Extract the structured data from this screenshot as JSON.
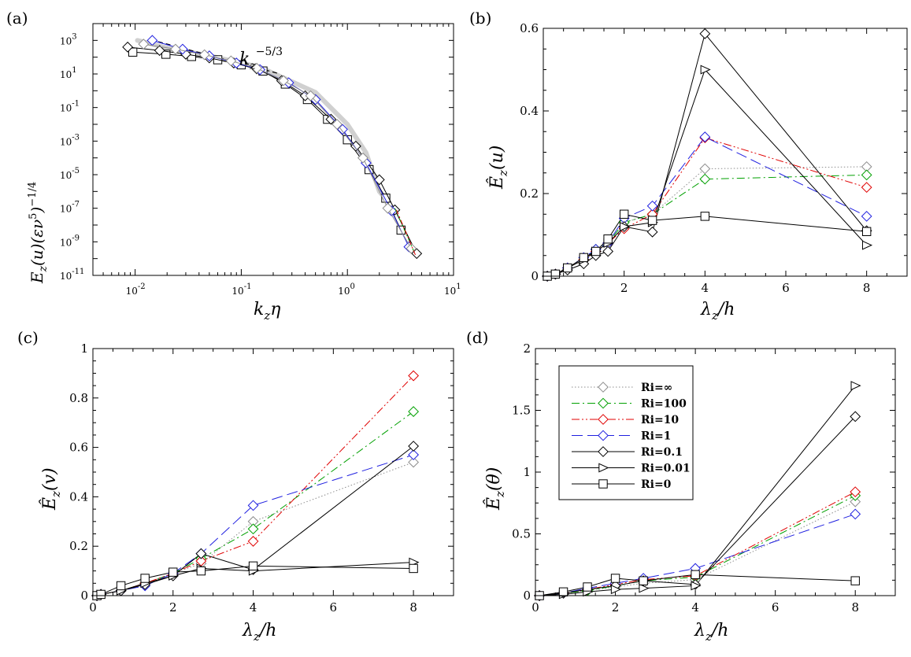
{
  "chart_data": [
    {
      "id": "a",
      "panel_label": "(a)",
      "type": "line",
      "xlabel": "k_z η",
      "ylabel": "E_z(u)(εν^5)^-1/4",
      "xscale": "log",
      "yscale": "log",
      "xlim": [
        0.004,
        10
      ],
      "ylim": [
        1e-11,
        10000
      ],
      "x_tick_labels": [
        {
          "base": "10",
          "exp": "-2",
          "value": 0.01
        },
        {
          "base": "10",
          "exp": "-1",
          "value": 0.1
        },
        {
          "base": "10",
          "exp": "0",
          "value": 1
        },
        {
          "base": "10",
          "exp": "1",
          "value": 10
        }
      ],
      "y_tick_labels": [
        {
          "base": "10",
          "exp": "3",
          "value": 1000
        },
        {
          "base": "10",
          "exp": "1",
          "value": 10
        },
        {
          "base": "10",
          "exp": "-1",
          "value": 0.1
        },
        {
          "base": "10",
          "exp": "-3",
          "value": 0.001
        },
        {
          "base": "10",
          "exp": "-5",
          "value": 1e-05
        },
        {
          "base": "10",
          "exp": "-7",
          "value": 1e-07
        },
        {
          "base": "10",
          "exp": "-9",
          "value": 1e-09
        },
        {
          "base": "10",
          "exp": "-11",
          "value": 1e-11
        }
      ],
      "annotation": "k_z^-5/3",
      "reference_slope": {
        "x": [
          0.014,
          0.22
        ],
        "y": [
          1100,
          11
        ],
        "style": "dashed"
      },
      "reference_band": {
        "x": [
          0.0105,
          0.02,
          0.05,
          0.15,
          0.5,
          1.0,
          1.5,
          2.0,
          2.2
        ],
        "y": [
          1000,
          350,
          120,
          25,
          0.8,
          0.01,
          0.0002,
          1e-06,
          5e-07
        ]
      },
      "series": [
        {
          "name": "Ri=0",
          "marker": "square",
          "x": [
            0.0095,
            0.0195,
            0.034,
            0.06,
            0.1,
            0.16,
            0.26,
            0.42,
            0.65,
            1.0,
            1.6,
            2.3,
            3.2
          ],
          "y": [
            200,
            150,
            110,
            70,
            35,
            15,
            2.5,
            0.3,
            0.02,
            0.0012,
            2e-05,
            4e-07,
            5e-09
          ]
        },
        {
          "name": "Ri=0.1",
          "marker": "diamond",
          "x": [
            0.0085,
            0.017,
            0.03,
            0.05,
            0.085,
            0.14,
            0.24,
            0.4,
            0.7,
            1.2,
            2.0,
            2.8,
            4.5
          ],
          "y": [
            400,
            250,
            150,
            90,
            45,
            20,
            4,
            0.5,
            0.02,
            0.0005,
            5e-06,
            8e-08,
            2e-10
          ]
        },
        {
          "name": "Ri=1",
          "marker": "diamond",
          "x": [
            0.0145,
            0.028,
            0.05,
            0.09,
            0.15,
            0.28,
            0.5,
            0.9,
            1.5,
            2.6,
            3.8
          ],
          "y": [
            1000,
            300,
            120,
            45,
            18,
            3,
            0.3,
            0.005,
            5e-05,
            7e-08,
            5e-10
          ]
        },
        {
          "name": "Ri=∞",
          "marker": "diamond",
          "x": [
            0.012,
            0.024,
            0.045,
            0.08,
            0.14,
            0.25,
            0.45,
            0.8,
            1.4,
            2.4,
            4.0
          ],
          "y": [
            600,
            300,
            140,
            60,
            22,
            4,
            0.5,
            0.01,
            0.0001,
            1e-07,
            4e-10
          ]
        }
      ]
    },
    {
      "id": "b",
      "panel_label": "(b)",
      "type": "line",
      "xlabel": "λ_z/h",
      "ylabel": "Ê_z(u)",
      "xlim": [
        0,
        9
      ],
      "ylim": [
        0,
        0.6
      ],
      "x_ticks": [
        2,
        4,
        6,
        8
      ],
      "x_tick_labels": [
        "2",
        "4",
        "6",
        "8"
      ],
      "y_ticks": [
        0,
        0.2,
        0.4,
        0.6
      ],
      "y_tick_labels": [
        "0",
        "0.2",
        "0.4",
        "0.6"
      ],
      "x": [
        0.1,
        0.3,
        0.6,
        1.0,
        1.3,
        1.6,
        2.0,
        2.7,
        4.0,
        8.0
      ],
      "series": [
        {
          "name": "Ri=∞",
          "marker": "diamond",
          "color": "#8c8c8c",
          "dash": "1.5,2.5",
          "values": [
            0.0,
            0.005,
            0.02,
            0.04,
            0.065,
            0.08,
            0.13,
            0.15,
            0.26,
            0.265
          ]
        },
        {
          "name": "Ri=100",
          "marker": "diamond",
          "color": "#00a000",
          "dash": "10,4,2,4",
          "values": [
            0.0,
            0.005,
            0.02,
            0.04,
            0.065,
            0.08,
            0.13,
            0.15,
            0.235,
            0.245
          ]
        },
        {
          "name": "Ri=10",
          "marker": "diamond",
          "color": "#e00000",
          "dash": "10,3,2,3,2,3",
          "values": [
            0.0,
            0.005,
            0.02,
            0.04,
            0.06,
            0.08,
            0.115,
            0.15,
            0.335,
            0.215
          ]
        },
        {
          "name": "Ri=1",
          "marker": "diamond",
          "color": "#2020e0",
          "dash": "14,6",
          "values": [
            0.0,
            0.005,
            0.02,
            0.045,
            0.065,
            0.08,
            0.14,
            0.17,
            0.337,
            0.145
          ]
        },
        {
          "name": "Ri=0.1",
          "marker": "diamond",
          "color": "#000000",
          "dash": "",
          "values": [
            0.0,
            0.005,
            0.015,
            0.03,
            0.05,
            0.06,
            0.12,
            0.107,
            0.587,
            0.11
          ]
        },
        {
          "name": "Ri=0.01",
          "marker": "triangle-right",
          "color": "#000000",
          "dash": "",
          "values": [
            0.0,
            0.005,
            0.02,
            0.04,
            0.06,
            0.08,
            0.12,
            0.13,
            0.5,
            0.075
          ]
        },
        {
          "name": "Ri=0",
          "marker": "square",
          "color": "#000000",
          "dash": "",
          "values": [
            0.0,
            0.005,
            0.02,
            0.045,
            0.06,
            0.09,
            0.15,
            0.135,
            0.145,
            0.108
          ]
        }
      ]
    },
    {
      "id": "c",
      "panel_label": "(c)",
      "type": "line",
      "xlabel": "λ_z/h",
      "ylabel": "Ê_z(v)",
      "xlim": [
        0,
        9
      ],
      "ylim": [
        0,
        1
      ],
      "x_ticks": [
        0,
        2,
        4,
        6,
        8
      ],
      "x_tick_labels": [
        "0",
        "2",
        "4",
        "6",
        "8"
      ],
      "y_ticks": [
        0,
        0.2,
        0.4,
        0.6,
        0.8,
        1
      ],
      "y_tick_labels": [
        "0",
        "0.2",
        "0.4",
        "0.6",
        "0.8",
        "1"
      ],
      "x": [
        0.1,
        0.2,
        0.7,
        1.3,
        2.0,
        2.7,
        4.0,
        8.0
      ],
      "series": [
        {
          "name": "Ri=∞",
          "marker": "diamond",
          "color": "#8c8c8c",
          "dash": "1.5,2.5",
          "values": [
            0.0,
            0.005,
            0.02,
            0.05,
            0.09,
            0.13,
            0.3,
            0.54
          ]
        },
        {
          "name": "Ri=100",
          "marker": "diamond",
          "color": "#00a000",
          "dash": "10,4,2,4",
          "values": [
            0.0,
            0.005,
            0.02,
            0.05,
            0.09,
            0.15,
            0.27,
            0.745
          ]
        },
        {
          "name": "Ri=10",
          "marker": "diamond",
          "color": "#e00000",
          "dash": "10,3,2,3,2,3",
          "values": [
            0.0,
            0.005,
            0.02,
            0.05,
            0.09,
            0.14,
            0.22,
            0.89
          ]
        },
        {
          "name": "Ri=1",
          "marker": "diamond",
          "color": "#2020e0",
          "dash": "14,6",
          "values": [
            0.0,
            0.005,
            0.02,
            0.04,
            0.09,
            0.17,
            0.365,
            0.57
          ]
        },
        {
          "name": "Ri=0.1",
          "marker": "diamond",
          "color": "#000000",
          "dash": "",
          "values": [
            0.0,
            0.005,
            0.02,
            0.045,
            0.08,
            0.17,
            0.105,
            0.605
          ]
        },
        {
          "name": "Ri=0.01",
          "marker": "triangle-right",
          "color": "#000000",
          "dash": "",
          "values": [
            0.0,
            0.005,
            0.02,
            0.05,
            0.08,
            0.11,
            0.1,
            0.135
          ]
        },
        {
          "name": "Ri=0",
          "marker": "square",
          "color": "#000000",
          "dash": "",
          "values": [
            0.0,
            0.005,
            0.04,
            0.07,
            0.095,
            0.1,
            0.12,
            0.11
          ]
        }
      ]
    },
    {
      "id": "d",
      "panel_label": "(d)",
      "type": "line",
      "xlabel": "λ_z/h",
      "ylabel": "Ê_z(θ)",
      "xlim": [
        0,
        9
      ],
      "ylim": [
        0,
        2
      ],
      "x_ticks": [
        0,
        2,
        4,
        6,
        8
      ],
      "x_tick_labels": [
        "0",
        "2",
        "4",
        "6",
        "8"
      ],
      "y_ticks": [
        0,
        0.5,
        1,
        1.5,
        2
      ],
      "y_tick_labels": [
        "0",
        "0.5",
        "1",
        "1.5",
        "2"
      ],
      "x": [
        0.1,
        0.7,
        1.3,
        2.0,
        2.7,
        4.0,
        8.0
      ],
      "legend": {
        "placement": "upper-left"
      },
      "series": [
        {
          "name": "Ri=∞",
          "legend_label": "Ri=∞",
          "marker": "diamond",
          "color": "#8c8c8c",
          "dash": "1.5,2.5",
          "values": [
            0.0,
            0.02,
            0.04,
            0.07,
            0.1,
            0.13,
            0.76
          ]
        },
        {
          "name": "Ri=100",
          "legend_label": "Ri=100",
          "marker": "diamond",
          "color": "#00a000",
          "dash": "10,4,2,4",
          "values": [
            0.0,
            0.02,
            0.04,
            0.08,
            0.12,
            0.15,
            0.81
          ]
        },
        {
          "name": "Ri=10",
          "legend_label": "Ri=10",
          "marker": "diamond",
          "color": "#e00000",
          "dash": "10,3,2,3,2,3",
          "values": [
            0.0,
            0.02,
            0.05,
            0.09,
            0.13,
            0.16,
            0.84
          ]
        },
        {
          "name": "Ri=1",
          "legend_label": "Ri=1",
          "marker": "diamond",
          "color": "#2020e0",
          "dash": "14,6",
          "values": [
            0.0,
            0.02,
            0.06,
            0.1,
            0.14,
            0.22,
            0.66
          ]
        },
        {
          "name": "Ri=0.1",
          "legend_label": "Ri=0.1",
          "marker": "diamond",
          "color": "#000000",
          "dash": "",
          "values": [
            0.0,
            0.02,
            0.05,
            0.08,
            0.12,
            0.09,
            1.45
          ]
        },
        {
          "name": "Ri=0.01",
          "legend_label": "Ri=0.01",
          "marker": "triangle-right",
          "color": "#000000",
          "dash": "",
          "values": [
            0.0,
            0.01,
            0.03,
            0.05,
            0.06,
            0.08,
            1.7
          ]
        },
        {
          "name": "Ri=0",
          "legend_label": "Ri=0",
          "marker": "square",
          "color": "#000000",
          "dash": "",
          "values": [
            0.0,
            0.03,
            0.07,
            0.14,
            0.12,
            0.17,
            0.12
          ]
        }
      ]
    }
  ]
}
